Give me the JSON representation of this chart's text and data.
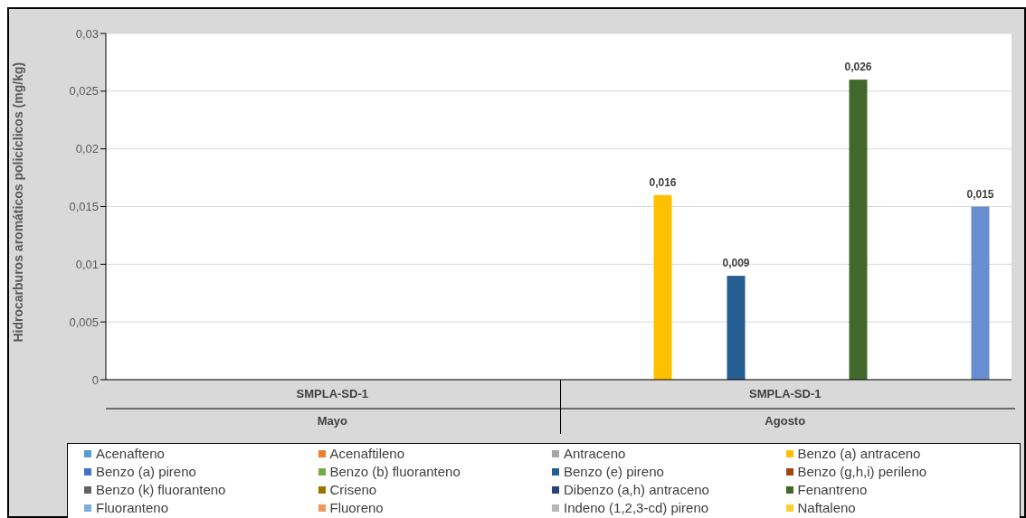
{
  "chart_data": {
    "type": "bar",
    "ylabel": "Hidrocarburos aromáticos policíclicos (mg/kg)",
    "categories": [
      "SMPLA-SD-1\nMayo",
      "SMPLA-SD-1\nAgosto"
    ],
    "series": [
      {
        "name": "Acenafteno",
        "color": "#5b9bd5",
        "values": [
          null,
          null
        ]
      },
      {
        "name": "Acenaftileno",
        "color": "#ed7d31",
        "values": [
          null,
          null
        ]
      },
      {
        "name": "Antraceno",
        "color": "#a5a5a5",
        "values": [
          null,
          null
        ]
      },
      {
        "name": "Benzo (a) antraceno",
        "color": "#ffc000",
        "values": [
          null,
          0.016
        ],
        "value_labels": [
          null,
          "0,016"
        ]
      },
      {
        "name": "Benzo (a) pireno",
        "color": "#4472c4",
        "values": [
          null,
          null
        ]
      },
      {
        "name": "Benzo (b) fluoranteno",
        "color": "#70ad47",
        "values": [
          null,
          null
        ]
      },
      {
        "name": "Benzo (e) pireno",
        "color": "#255e91",
        "values": [
          null,
          0.009
        ],
        "value_labels": [
          null,
          "0,009"
        ]
      },
      {
        "name": "Benzo (g,h,i) perileno",
        "color": "#9e480e",
        "values": [
          null,
          null
        ]
      },
      {
        "name": "Benzo (k) fluoranteno",
        "color": "#636363",
        "values": [
          null,
          null
        ]
      },
      {
        "name": "Criseno",
        "color": "#997300",
        "values": [
          null,
          null
        ]
      },
      {
        "name": "Dibenzo (a,h) antraceno",
        "color": "#264478",
        "values": [
          null,
          null
        ]
      },
      {
        "name": "Fenantreno",
        "color": "#43682b",
        "values": [
          null,
          0.026
        ],
        "value_labels": [
          null,
          "0,026"
        ]
      },
      {
        "name": "Fluoranteno",
        "color": "#7cafdd",
        "values": [
          null,
          null
        ]
      },
      {
        "name": "Fluoreno",
        "color": "#f1975a",
        "values": [
          null,
          null
        ]
      },
      {
        "name": "Indeno (1,2,3-cd) pireno",
        "color": "#b7b7b7",
        "values": [
          null,
          null
        ]
      },
      {
        "name": "Naftaleno",
        "color": "#ffcd33",
        "values": [
          null,
          null
        ]
      },
      {
        "color": "#698ed0",
        "values": [
          null,
          0.015
        ],
        "value_labels": [
          null,
          "0,015"
        ]
      }
    ],
    "ylim": [
      0,
      0.03
    ],
    "yticks": [
      0,
      {
        "value": 0.005,
        "label": "0,005"
      },
      {
        "value": 0.01,
        "label": "0,01"
      },
      {
        "value": 0.015,
        "label": "0,015"
      },
      {
        "value": 0.02,
        "label": "0,02"
      },
      {
        "value": 0.025,
        "label": "0,025"
      },
      {
        "value": 0.03,
        "label": "0,03"
      }
    ],
    "grid": "y",
    "legend": "bottom"
  }
}
